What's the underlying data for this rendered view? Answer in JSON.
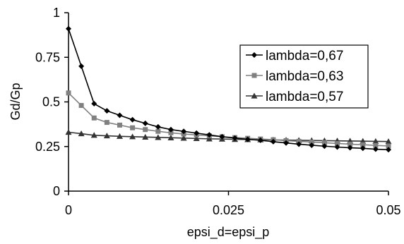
{
  "chart_data": {
    "type": "line",
    "xlabel": "epsi_d=epsi_p",
    "ylabel": "Gd/Gp",
    "xlim": [
      0,
      0.05
    ],
    "ylim": [
      0,
      1
    ],
    "x_tick_labels": [
      "0",
      "0.025",
      "0.05"
    ],
    "y_tick_labels": [
      "0",
      "0.25",
      "0.5",
      "0.75",
      "1"
    ],
    "x_ticks": [
      0,
      0.025,
      0.05
    ],
    "y_ticks": [
      0,
      0.25,
      0.5,
      0.75,
      1
    ],
    "grid": false,
    "legend_position": "right",
    "x": [
      0,
      0.002,
      0.004,
      0.006,
      0.008,
      0.01,
      0.012,
      0.014,
      0.016,
      0.018,
      0.02,
      0.022,
      0.024,
      0.026,
      0.028,
      0.03,
      0.032,
      0.034,
      0.036,
      0.038,
      0.04,
      0.042,
      0.044,
      0.046,
      0.048,
      0.05
    ],
    "series": [
      {
        "name": "lambda=0,67",
        "marker": "diamond",
        "color": "#000000",
        "values": [
          0.91,
          0.7,
          0.49,
          0.45,
          0.425,
          0.4,
          0.38,
          0.36,
          0.345,
          0.335,
          0.325,
          0.315,
          0.305,
          0.297,
          0.29,
          0.285,
          0.277,
          0.27,
          0.263,
          0.257,
          0.252,
          0.247,
          0.243,
          0.24,
          0.235,
          0.232
        ]
      },
      {
        "name": "lambda=0,63",
        "marker": "square",
        "color": "#808080",
        "values": [
          0.55,
          0.48,
          0.41,
          0.385,
          0.37,
          0.355,
          0.345,
          0.335,
          0.327,
          0.32,
          0.315,
          0.31,
          0.305,
          0.3,
          0.296,
          0.292,
          0.288,
          0.283,
          0.279,
          0.275,
          0.271,
          0.267,
          0.263,
          0.26,
          0.256,
          0.253
        ]
      },
      {
        "name": "lambda=0,57",
        "marker": "triangle",
        "color": "#333333",
        "values": [
          0.33,
          0.322,
          0.313,
          0.31,
          0.307,
          0.305,
          0.303,
          0.301,
          0.299,
          0.297,
          0.295,
          0.293,
          0.292,
          0.29,
          0.289,
          0.288,
          0.287,
          0.286,
          0.285,
          0.284,
          0.283,
          0.282,
          0.281,
          0.28,
          0.279,
          0.278
        ]
      }
    ]
  }
}
